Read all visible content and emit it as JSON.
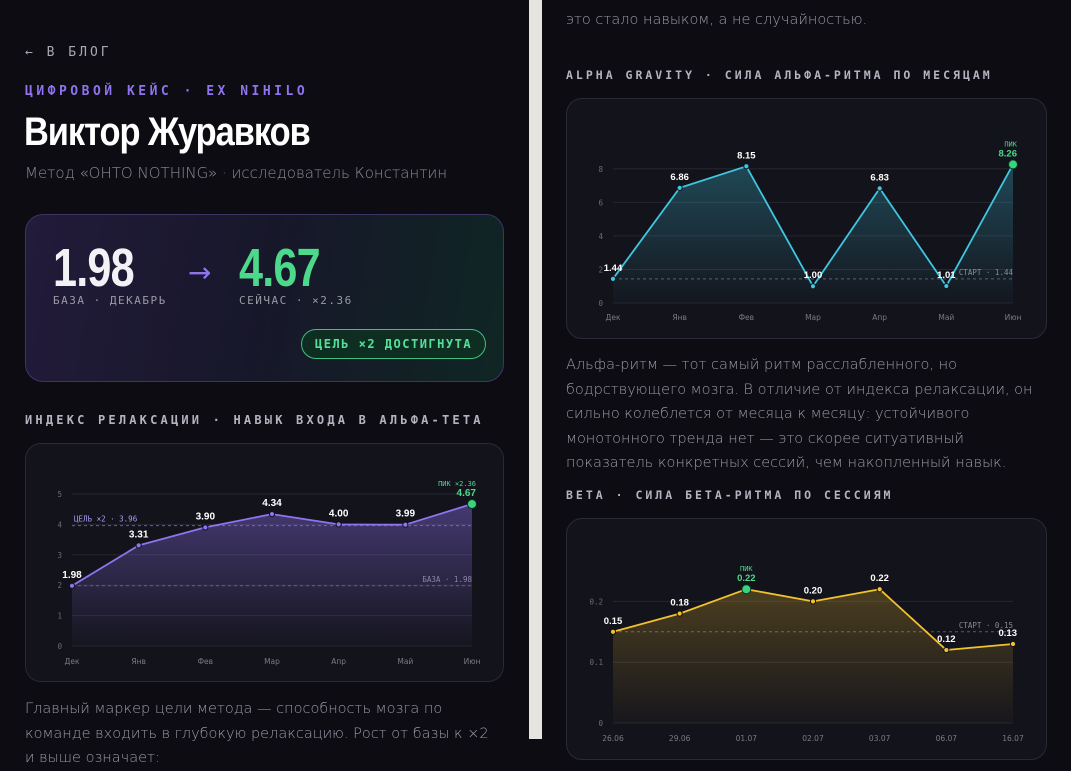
{
  "nav": {
    "back_label": "← В БЛОГ"
  },
  "header": {
    "kicker": "ЦИФРОВОЙ КЕЙС · EX NIHILO",
    "title": "Виктор Журавков",
    "subtitle": "Метод «OHTO NOTHING» · исследователь Константин"
  },
  "hero": {
    "base_value": "1.98",
    "base_label": "БАЗА · ДЕКАБРЬ",
    "arrow": "→",
    "now_value": "4.67",
    "now_label": "СЕЙЧАС · ×2.36",
    "goal_badge": "ЦЕЛЬ ×2 ДОСТИГНУТА"
  },
  "sections": {
    "relax_title": "ИНДЕКС РЕЛАКСАЦИИ · НАВЫК ВХОДА В АЛЬФА-ТЕТА",
    "alpha_title": "ALPHA GRAVITY · СИЛА АЛЬФА-РИТМА ПО МЕСЯЦАМ",
    "beta_title": "BETA · СИЛА БЕТА-РИТМА ПО СЕССИЯМ"
  },
  "text": {
    "top_fragment": "это стало навыком, а не случайностью.",
    "alpha_para": "Альфа-ритм — тот самый ритм расслабленного, но бодрствующего мозга. В отличие от индекса релаксации, он сильно колеблется от месяца к месяцу: устойчивого монотонного тренда нет — это скорее ситуативный показатель конкретных сессий, чем накопленный навык.",
    "relax_para": "Главный маркер цели метода — способность мозга по команде входить в глубокую релаксацию. Рост от базы к ×2 и выше означает:"
  },
  "colors": {
    "accent_purple": "#8f73ef",
    "accent_green": "#4cd98b",
    "cyan": "#3fc6e0",
    "amber": "#f2c12e"
  },
  "chart_data": [
    {
      "type": "line",
      "title": "ИНДЕКС РЕЛАКСАЦИИ · НАВЫК ВХОДА В АЛЬФА-ТЕТА",
      "x": [
        "Дек",
        "Янв",
        "Фев",
        "Мар",
        "Апр",
        "Май",
        "Июн"
      ],
      "values": [
        1.98,
        3.31,
        3.9,
        4.34,
        4.0,
        3.99,
        4.67
      ],
      "labels": [
        "1.98",
        "3.31",
        "3.90",
        "4.34",
        "4.00",
        "3.99",
        "4.67"
      ],
      "ylim": [
        0,
        5
      ],
      "yticks": [
        "0",
        "1",
        "2",
        "3",
        "4",
        "5"
      ],
      "refs": [
        {
          "value": 3.96,
          "label": "ЦЕЛЬ ×2 · 3.96",
          "side": "left"
        },
        {
          "value": 1.98,
          "label": "БАЗА · 1.98",
          "side": "right"
        }
      ],
      "peak_label": "ПИК ×2.36",
      "color": "#8f73ef"
    },
    {
      "type": "line",
      "title": "ALPHA GRAVITY · СИЛА АЛЬФА-РИТМА ПО МЕСЯЦАМ",
      "x": [
        "Дек",
        "Янв",
        "Фев",
        "Мар",
        "Апр",
        "Май",
        "Июн"
      ],
      "values": [
        1.44,
        6.86,
        8.15,
        1.0,
        6.83,
        1.01,
        8.26
      ],
      "labels": [
        "1.44",
        "6.86",
        "8.15",
        "1.00",
        "6.83",
        "1.01",
        "8.26"
      ],
      "ylim": [
        0,
        9
      ],
      "yticks": [
        "0",
        "2",
        "4",
        "6",
        "8"
      ],
      "refs": [
        {
          "value": 1.44,
          "label": "СТАРТ · 1.44",
          "side": "right"
        }
      ],
      "peak_label": "ПИК",
      "color": "#3fc6e0"
    },
    {
      "type": "line",
      "title": "BETA · СИЛА БЕТА-РИТМА ПО СЕССИЯМ",
      "x": [
        "26.06",
        "29.06",
        "01.07",
        "02.07",
        "03.07",
        "06.07",
        "16.07"
      ],
      "values": [
        0.15,
        0.18,
        0.22,
        0.2,
        0.22,
        0.12,
        0.13
      ],
      "labels": [
        "0.15",
        "0.18",
        "0.22",
        "0.20",
        "0.22",
        "0.12",
        "0.13"
      ],
      "ylim": [
        0,
        0.25
      ],
      "yticks": [
        "0",
        "0.1",
        "0.2"
      ],
      "refs": [
        {
          "value": 0.15,
          "label": "СТАРТ · 0.15",
          "side": "right"
        }
      ],
      "peak_label": "ПИК",
      "color": "#f2c12e"
    }
  ]
}
